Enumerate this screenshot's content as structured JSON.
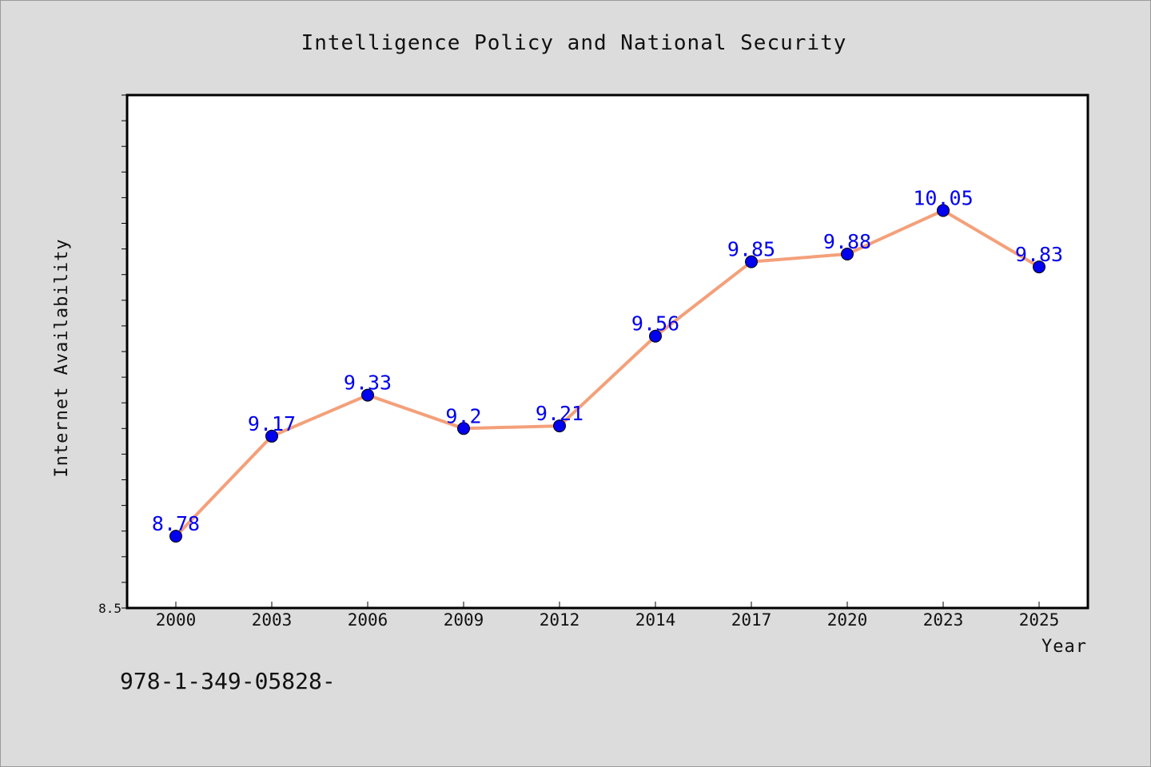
{
  "chart_data": {
    "type": "line",
    "title": "Intelligence Policy and National Security",
    "xlabel": "Year",
    "ylabel": "Internet Availability",
    "categories": [
      "2000",
      "2003",
      "2006",
      "2009",
      "2012",
      "2014",
      "2017",
      "2020",
      "2023",
      "2025"
    ],
    "series": [
      {
        "values": [
          8.78,
          9.17,
          9.33,
          9.2,
          9.21,
          9.56,
          9.85,
          9.88,
          10.05,
          9.83
        ]
      }
    ],
    "data_labels": [
      "8.78",
      "9.17",
      "9.33",
      "9.2",
      "9.21",
      "9.56",
      "9.85",
      "9.88",
      "10.05",
      "9.83"
    ],
    "ylim": [
      8.5,
      10.5
    ],
    "ytick_labels": [
      "8.5"
    ],
    "grid": false,
    "line_color": "#f4a07a",
    "marker_color": "#0000ee",
    "label_color": "#0000ee"
  },
  "caption": "978-1-349-05828-"
}
